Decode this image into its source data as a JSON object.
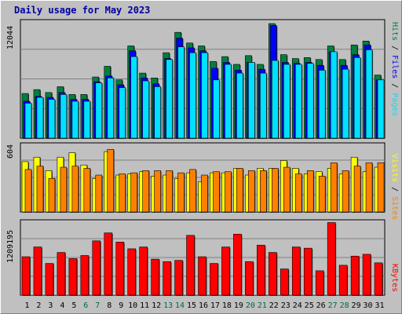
{
  "title": "Daily usage for May 2023",
  "colors": {
    "background": "#c0c0c0",
    "plot_background": "#c0c0c0",
    "hits": "#008040",
    "files": "#0000ff",
    "pages": "#00e0ff",
    "visits": "#ffff00",
    "sites": "#ff8000",
    "kbytes": "#ff0000",
    "weekday_label": "#000000",
    "weekend_label": "#006a40",
    "title": "#0000a0"
  },
  "chart_data": [
    {
      "type": "bar",
      "panel": "hits-files-pages",
      "categories": [
        "1",
        "2",
        "3",
        "4",
        "5",
        "6",
        "7",
        "8",
        "9",
        "10",
        "11",
        "12",
        "13",
        "14",
        "15",
        "16",
        "17",
        "18",
        "19",
        "20",
        "21",
        "22",
        "23",
        "24",
        "25",
        "26",
        "27",
        "28",
        "29",
        "30",
        "31"
      ],
      "weekend_days": [
        "6",
        "7",
        "13",
        "14",
        "20",
        "21",
        "27",
        "28"
      ],
      "y_max_label": "12044",
      "ylim": [
        0,
        12044
      ],
      "grid": true,
      "legend": {
        "position": "right",
        "labels": [
          "Pages",
          "Files",
          "Hits"
        ],
        "separator": " / "
      },
      "series": [
        {
          "name": "Hits",
          "values": [
            4600,
            5000,
            4700,
            5300,
            4500,
            4500,
            6300,
            7400,
            6000,
            9500,
            6700,
            6200,
            8800,
            10900,
            9800,
            9500,
            7900,
            8400,
            7600,
            8500,
            7600,
            11800,
            8600,
            8200,
            8300,
            8100,
            9500,
            8100,
            9600,
            10000,
            6500
          ]
        },
        {
          "name": "Files",
          "values": [
            3800,
            4300,
            4200,
            4700,
            4000,
            4000,
            5800,
            6400,
            5500,
            9000,
            6200,
            5600,
            8200,
            10300,
            9300,
            9000,
            7200,
            7800,
            7000,
            7800,
            7100,
            11600,
            7800,
            7700,
            7800,
            7500,
            8900,
            7500,
            8600,
            9600,
            6000
          ]
        },
        {
          "name": "Pages",
          "values": [
            3600,
            4200,
            4000,
            4500,
            3800,
            3800,
            5700,
            6200,
            5200,
            8400,
            5900,
            5300,
            8100,
            9400,
            8800,
            8800,
            6000,
            7600,
            6700,
            7800,
            6700,
            8000,
            7600,
            7600,
            7700,
            7000,
            8900,
            7100,
            8300,
            9100,
            6000
          ]
        }
      ]
    },
    {
      "type": "bar",
      "panel": "visits-sites",
      "categories": [
        "1",
        "2",
        "3",
        "4",
        "5",
        "6",
        "7",
        "8",
        "9",
        "10",
        "11",
        "12",
        "13",
        "14",
        "15",
        "16",
        "17",
        "18",
        "19",
        "20",
        "21",
        "22",
        "23",
        "24",
        "25",
        "26",
        "27",
        "28",
        "29",
        "30",
        "31"
      ],
      "y_max_label": "604",
      "ylim": [
        0,
        604
      ],
      "grid": true,
      "legend": {
        "position": "right",
        "labels": [
          "Sites",
          "Visits"
        ],
        "separator": " / "
      },
      "series": [
        {
          "name": "Visits",
          "values": [
            450,
            490,
            370,
            490,
            530,
            420,
            300,
            540,
            330,
            340,
            360,
            320,
            330,
            300,
            350,
            270,
            350,
            350,
            390,
            330,
            390,
            390,
            460,
            390,
            340,
            360,
            390,
            340,
            490,
            360,
            400
          ]
        },
        {
          "name": "Sites",
          "values": [
            380,
            410,
            300,
            400,
            410,
            390,
            330,
            560,
            340,
            350,
            370,
            370,
            370,
            350,
            380,
            330,
            360,
            360,
            390,
            370,
            370,
            390,
            400,
            340,
            370,
            320,
            440,
            370,
            410,
            440,
            440
          ]
        }
      ]
    },
    {
      "type": "bar",
      "panel": "kbytes",
      "categories": [
        "1",
        "2",
        "3",
        "4",
        "5",
        "6",
        "7",
        "8",
        "9",
        "10",
        "11",
        "12",
        "13",
        "14",
        "15",
        "16",
        "17",
        "18",
        "19",
        "20",
        "21",
        "22",
        "23",
        "24",
        "25",
        "26",
        "27",
        "28",
        "29",
        "30",
        "31"
      ],
      "y_max_label": "1209195",
      "ylim": [
        0,
        1209195
      ],
      "grid": true,
      "legend": {
        "position": "right",
        "labels": [
          "KBytes"
        ],
        "separator": " / "
      },
      "series": [
        {
          "name": "KBytes",
          "values": [
            630000,
            790000,
            520000,
            700000,
            600000,
            650000,
            890000,
            1020000,
            870000,
            760000,
            790000,
            590000,
            550000,
            570000,
            980000,
            630000,
            520000,
            790000,
            1000000,
            550000,
            820000,
            700000,
            430000,
            790000,
            770000,
            400000,
            1190000,
            490000,
            640000,
            670000,
            530000
          ]
        }
      ]
    }
  ]
}
